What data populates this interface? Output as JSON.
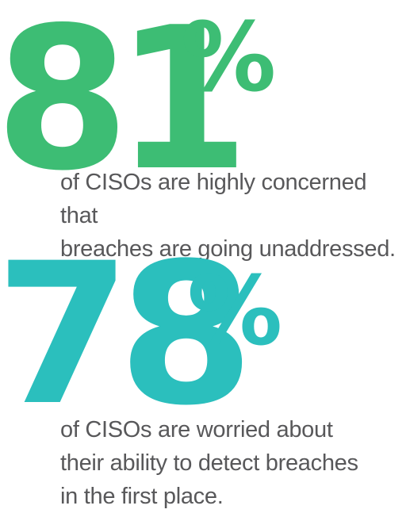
{
  "stats": [
    {
      "number": "81",
      "percent_sign": "%",
      "color": "#3dbd74",
      "caption_line_1": "of CISOs are highly concerned that",
      "caption_line_2": "breaches are going unaddressed."
    },
    {
      "number": "78",
      "percent_sign": "%",
      "color": "#2bbfbd",
      "caption_line_1": "of CISOs are worried about",
      "caption_line_2": "their ability to detect breaches",
      "caption_line_3": "in the first place."
    }
  ],
  "caption_color": "#58585a"
}
